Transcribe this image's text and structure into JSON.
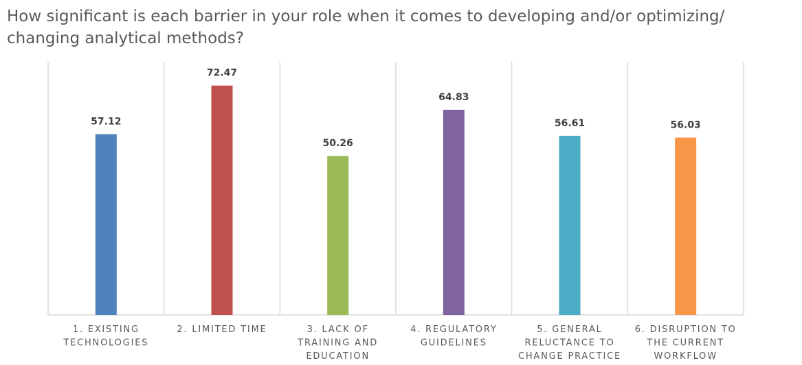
{
  "chart_data": {
    "type": "bar",
    "title": "How significant is each barrier in your role when it comes to developing and/or optimizing/ changing analytical methods?",
    "categories": [
      [
        "1. EXISTING",
        "TECHNOLOGIES"
      ],
      [
        "2. LIMITED TIME"
      ],
      [
        "3. LACK OF",
        "TRAINING AND",
        "EDUCATION"
      ],
      [
        "4. REGULATORY",
        "GUIDELINES"
      ],
      [
        "5. GENERAL",
        "RELUCTANCE TO",
        "CHANGE PRACTICE"
      ],
      [
        "6. DISRUPTION TO",
        "THE CURRENT",
        "WORKFLOW"
      ]
    ],
    "values": [
      57.12,
      72.47,
      50.26,
      64.83,
      56.61,
      56.03
    ],
    "data_labels": [
      "57.12",
      "72.47",
      "50.26",
      "64.83",
      "56.61",
      "56.03"
    ],
    "colors": [
      "#4f81bd",
      "#c0504d",
      "#9bbb59",
      "#8064a2",
      "#4bacc6",
      "#f79646"
    ],
    "ylim": [
      0,
      80
    ],
    "xlabel": "",
    "ylabel": "",
    "grid": "vertical category separators",
    "legend": "none"
  }
}
